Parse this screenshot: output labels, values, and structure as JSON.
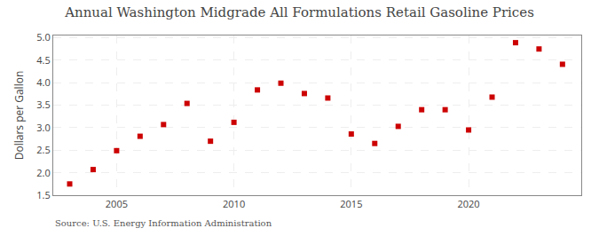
{
  "chart_data": {
    "type": "scatter",
    "title": "Annual Washington Midgrade All Formulations Retail Gasoline Prices",
    "ylabel": "Dollars per Gallon",
    "annotations": [
      "Source: U.S. Energy Information Administration"
    ],
    "x": [
      2003,
      2004,
      2005,
      2006,
      2007,
      2008,
      2009,
      2010,
      2011,
      2012,
      2013,
      2014,
      2015,
      2016,
      2017,
      2018,
      2019,
      2020,
      2021,
      2022,
      2023,
      2024
    ],
    "values": [
      1.75,
      2.07,
      2.49,
      2.81,
      3.07,
      3.54,
      2.7,
      3.12,
      3.84,
      3.99,
      3.76,
      3.66,
      2.86,
      2.65,
      3.03,
      3.4,
      3.4,
      2.95,
      3.68,
      4.89,
      4.75,
      4.41
    ],
    "color": "#cc0000",
    "marker": "square",
    "xlim": [
      2002.3,
      2024.8
    ],
    "xticks": [
      2005,
      2010,
      2015,
      2020
    ],
    "ylim": [
      1.5,
      5.05
    ],
    "yticks": [
      1.5,
      {
        "value": 2.0,
        "label": "2.0"
      },
      2.5,
      {
        "value": 3.0,
        "label": "3.0"
      },
      3.5,
      {
        "value": 4.0,
        "label": "4.0"
      },
      4.5,
      {
        "value": 5.0,
        "label": "5.0"
      }
    ],
    "grid": true
  }
}
